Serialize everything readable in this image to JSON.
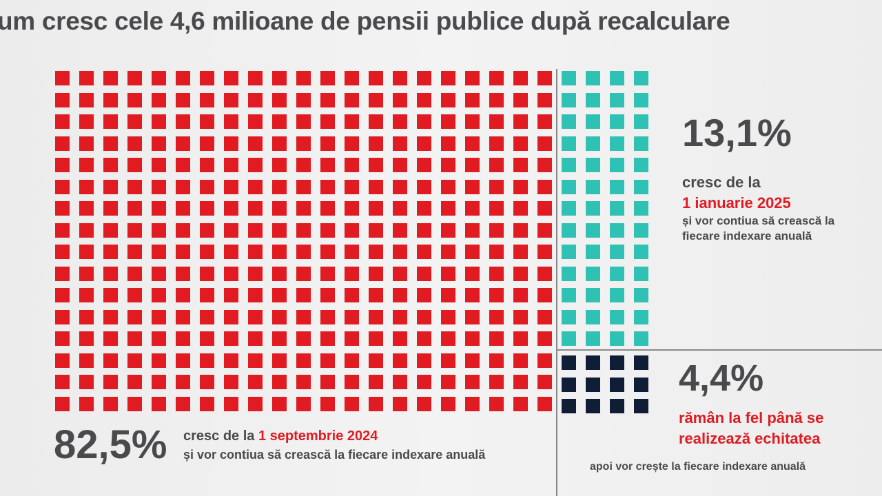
{
  "title": "um cresc cele 4,6 milioane de pensii publice după recalculare",
  "colors": {
    "red": "#e01b22",
    "teal": "#2fc1b3",
    "navy": "#0f1e36",
    "text": "#4a4a4c"
  },
  "chart_data": {
    "type": "waffle",
    "title": "um cresc cele 4,6 milioane de pensii publice după recalculare",
    "groups": [
      {
        "percent_label": "82,5%",
        "value": 82.5,
        "color": "#e01b22",
        "columns": 21,
        "rows": 16,
        "text_line1": "cresc de la ",
        "text_highlight": "1 septembrie 2024",
        "text_line2": "și vor contiua să crească la fiecare indexare anuală"
      },
      {
        "percent_label": "13,1%",
        "value": 13.1,
        "color": "#2fc1b3",
        "columns": 4,
        "rows": 13,
        "text_line1": "cresc de la",
        "text_highlight": "1 ianuarie 2025",
        "text_line2": "și vor contiua să crească la",
        "text_line3": "fiecare indexare anuală"
      },
      {
        "percent_label": "4,4%",
        "value": 4.4,
        "color": "#0f1e36",
        "columns": 4,
        "rows": 3,
        "text_highlight": "rămân la fel până se",
        "text_highlight2": "realizează echitatea",
        "text_line2": "apoi vor crește la fiecare indexare anuală"
      }
    ]
  }
}
